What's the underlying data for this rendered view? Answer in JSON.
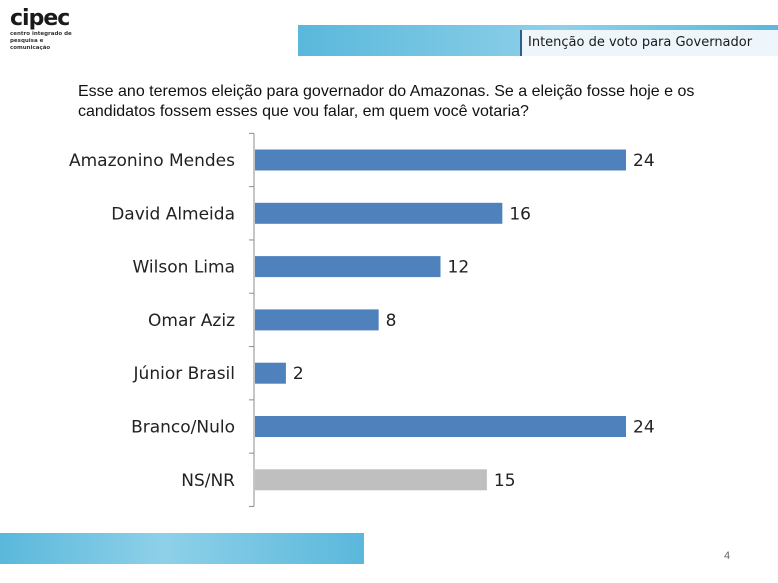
{
  "logo": {
    "name": "cipec",
    "tagline": "centro integrado de pesquisa e comunicação"
  },
  "header": {
    "title": "Intenção de voto para Governador"
  },
  "question": "Esse ano teremos eleição para governador do Amazonas. Se a eleição fosse hoje e os candidatos fossem esses que vou falar, em quem você votaria?",
  "page_number": "4",
  "colors": {
    "bar_primary": "#4f81bd",
    "bar_neutral": "#bfbfbf",
    "band": "#5ab8dc"
  },
  "chart_data": {
    "type": "bar",
    "orientation": "horizontal",
    "categories": [
      "Amazonino Mendes",
      "David Almeida",
      "Wilson Lima",
      "Omar Aziz",
      "Júnior Brasil",
      "Branco/Nulo",
      "NS/NR"
    ],
    "values": [
      24,
      16,
      12,
      8,
      2,
      24,
      15
    ],
    "bar_colors": [
      "#4f81bd",
      "#4f81bd",
      "#4f81bd",
      "#4f81bd",
      "#4f81bd",
      "#4f81bd",
      "#bfbfbf"
    ],
    "data_labels": [
      "24",
      "16",
      "12",
      "8",
      "2",
      "24",
      "15"
    ],
    "xlim": [
      0,
      24
    ],
    "grid": false,
    "legend": "none"
  }
}
